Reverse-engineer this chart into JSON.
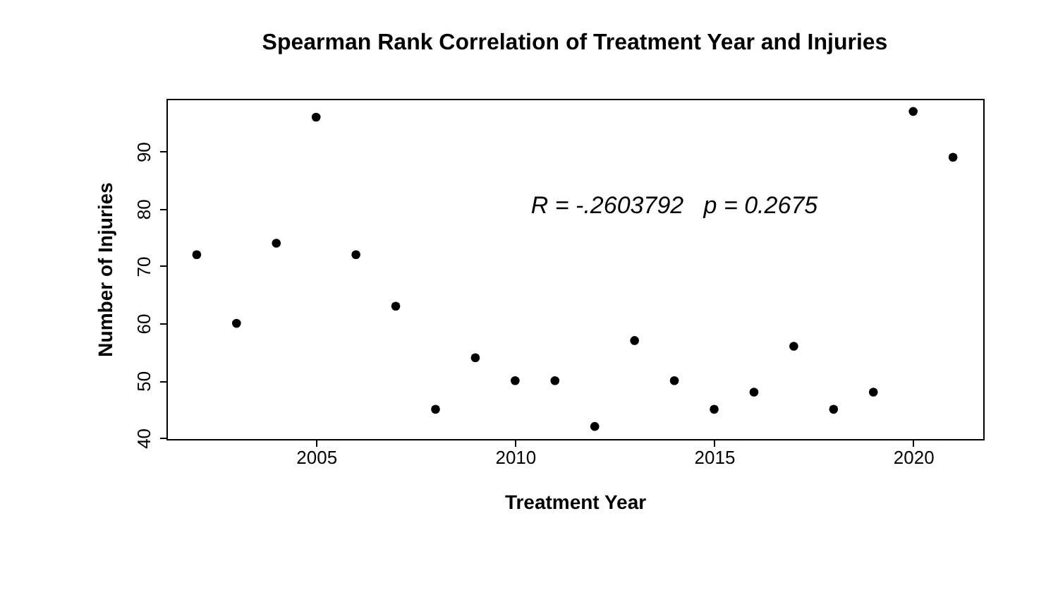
{
  "chart_data": {
    "type": "scatter",
    "title": "Spearman Rank Correlation of Treatment Year and Injuries",
    "xlabel": "Treatment Year",
    "ylabel": "Number of Injuries",
    "x": [
      2002,
      2003,
      2004,
      2005,
      2006,
      2007,
      2008,
      2009,
      2010,
      2011,
      2012,
      2013,
      2014,
      2015,
      2016,
      2017,
      2018,
      2019,
      2020,
      2021
    ],
    "values": [
      72,
      60,
      74,
      96,
      72,
      63,
      45,
      54,
      50,
      50,
      42,
      57,
      50,
      45,
      48,
      56,
      45,
      48,
      97,
      89
    ],
    "color": "#000000",
    "marker": "circle",
    "xlim": [
      2001.24,
      2021.76
    ],
    "xticks": [
      2005,
      2010,
      2015,
      2020
    ],
    "ylim": [
      39.8,
      99.2
    ],
    "yticks": [
      40,
      50,
      60,
      70,
      80,
      90
    ],
    "grid": false,
    "annotations": [
      "R = -.2603792   p = 0.2675"
    ]
  }
}
